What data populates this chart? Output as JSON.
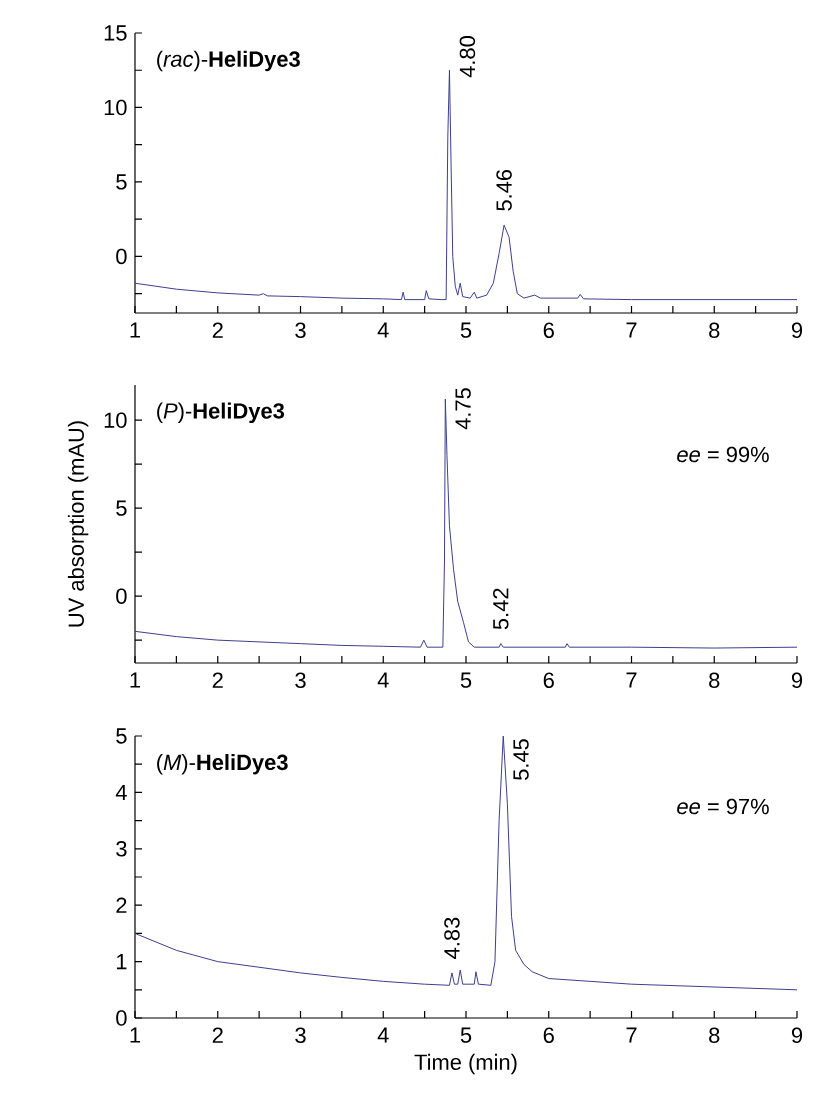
{
  "chart_data": [
    {
      "type": "line",
      "title": "(*rac*)-**HeliDye3**",
      "xlim": [
        1,
        9
      ],
      "ylim": [
        -3.8,
        15
      ],
      "xticks": [
        1,
        {
          "value": 1.5,
          "label": null
        },
        2,
        {
          "value": 2.5,
          "label": null
        },
        3,
        {
          "value": 3.5,
          "label": null
        },
        4,
        {
          "value": 4.5,
          "label": null
        },
        5,
        {
          "value": 5.5,
          "label": null
        },
        6,
        {
          "value": 6.5,
          "label": null
        },
        7,
        {
          "value": 7.5,
          "label": null
        },
        8,
        {
          "value": 8.5,
          "label": null
        },
        9
      ],
      "yticks": [
        {
          "value": -2.5,
          "label": null
        },
        0,
        {
          "value": 2.5,
          "label": null
        },
        5,
        {
          "value": 7.5,
          "label": null
        },
        10,
        {
          "value": 12.5,
          "label": null
        },
        15
      ],
      "annotations": [
        {
          "text": "4.80",
          "x": 4.8,
          "y": 12.5
        },
        {
          "text": "5.46",
          "x": 5.46,
          "y": 2.1
        }
      ],
      "series": [
        {
          "color": "#3b3f8c",
          "x": [
            1,
            1.5,
            2,
            2.5,
            2.55,
            2.6,
            3,
            3.5,
            4,
            4.22,
            4.24,
            4.26,
            4.5,
            4.52,
            4.55,
            4.7,
            4.76,
            4.78,
            4.8,
            4.82,
            4.84,
            4.87,
            4.9,
            4.93,
            4.96,
            5.05,
            5.1,
            5.13,
            5.25,
            5.33,
            5.4,
            5.46,
            5.52,
            5.57,
            5.62,
            5.7,
            5.83,
            5.9,
            6.35,
            6.38,
            6.42,
            7,
            8,
            9
          ],
          "values": [
            -1.8,
            -2.2,
            -2.45,
            -2.6,
            -2.5,
            -2.65,
            -2.7,
            -2.8,
            -2.85,
            -2.9,
            -2.4,
            -2.9,
            -2.9,
            -2.3,
            -2.85,
            -2.9,
            -2.9,
            8,
            12.5,
            6,
            0,
            -2.0,
            -2.6,
            -1.8,
            -2.7,
            -2.8,
            -2.4,
            -2.8,
            -2.6,
            -1.8,
            0.2,
            2.1,
            1.3,
            -1.0,
            -2.5,
            -2.8,
            -2.6,
            -2.8,
            -2.8,
            -2.55,
            -2.85,
            -2.9,
            -2.9,
            -2.9
          ]
        }
      ]
    },
    {
      "type": "line",
      "title": "(*P*)-**HeliDye3**",
      "ylabel": "UV absorption (mAU)",
      "xlim": [
        1,
        9
      ],
      "ylim": [
        -3.8,
        12
      ],
      "xticks": [
        1,
        {
          "value": 1.5,
          "label": null
        },
        2,
        {
          "value": 2.5,
          "label": null
        },
        3,
        {
          "value": 3.5,
          "label": null
        },
        4,
        {
          "value": 4.5,
          "label": null
        },
        5,
        {
          "value": 5.5,
          "label": null
        },
        6,
        {
          "value": 6.5,
          "label": null
        },
        7,
        {
          "value": 7.5,
          "label": null
        },
        8,
        {
          "value": 8.5,
          "label": null
        },
        9
      ],
      "yticks": [
        {
          "value": -2.5,
          "label": null
        },
        0,
        {
          "value": 2.5,
          "label": null
        },
        5,
        {
          "value": 7.5,
          "label": null
        },
        10
      ],
      "annotations": [
        {
          "text": "4.75",
          "x": 4.75,
          "y": 11.2
        },
        {
          "text": "5.42",
          "x": 5.42,
          "y": -2.7
        },
        "*ee* = 99%"
      ],
      "series": [
        {
          "color": "#3b3f8c",
          "x": [
            1,
            1.5,
            2,
            2.5,
            3,
            3.5,
            4,
            4.45,
            4.49,
            4.53,
            4.72,
            4.74,
            4.75,
            4.77,
            4.8,
            4.85,
            4.9,
            4.97,
            5.03,
            5.1,
            5.4,
            5.42,
            5.45,
            6.2,
            6.22,
            6.25,
            7,
            8,
            9
          ],
          "values": [
            -2.0,
            -2.3,
            -2.5,
            -2.6,
            -2.7,
            -2.8,
            -2.85,
            -2.9,
            -2.5,
            -2.9,
            -2.9,
            2,
            11.2,
            8,
            4,
            1.5,
            -0.3,
            -1.5,
            -2.6,
            -2.9,
            -2.9,
            -2.7,
            -2.9,
            -2.9,
            -2.7,
            -2.9,
            -2.9,
            -2.95,
            -2.9
          ]
        }
      ]
    },
    {
      "type": "line",
      "title": "(*M*)-**HeliDye3**",
      "xlabel": "Time (min)",
      "xlim": [
        1,
        9
      ],
      "ylim": [
        0,
        5
      ],
      "xticks": [
        1,
        {
          "value": 1.5,
          "label": null
        },
        2,
        {
          "value": 2.5,
          "label": null
        },
        3,
        {
          "value": 3.5,
          "label": null
        },
        4,
        {
          "value": 4.5,
          "label": null
        },
        5,
        {
          "value": 5.5,
          "label": null
        },
        6,
        {
          "value": 6.5,
          "label": null
        },
        7,
        {
          "value": 7.5,
          "label": null
        },
        8,
        {
          "value": 8.5,
          "label": null
        },
        9
      ],
      "yticks": [
        0,
        {
          "value": 0.5,
          "label": null
        },
        1,
        {
          "value": 1.5,
          "label": null
        },
        2,
        {
          "value": 2.5,
          "label": null
        },
        3,
        {
          "value": 3.5,
          "label": null
        },
        4,
        {
          "value": 4.5,
          "label": null
        },
        5
      ],
      "annotations": [
        {
          "text": "4.83",
          "x": 4.83,
          "y": 0.8
        },
        {
          "text": "5.45",
          "x": 5.45,
          "y": 5.0
        },
        "*ee* = 97%"
      ],
      "series": [
        {
          "color": "#3b3f8c",
          "x": [
            1,
            1.5,
            2,
            2.5,
            3,
            3.5,
            4,
            4.5,
            4.8,
            4.83,
            4.86,
            4.9,
            4.93,
            4.96,
            5.1,
            5.12,
            5.15,
            5.3,
            5.35,
            5.4,
            5.45,
            5.5,
            5.55,
            5.6,
            5.7,
            5.8,
            6,
            6.5,
            7,
            8,
            9
          ],
          "values": [
            1.5,
            1.2,
            1.0,
            0.9,
            0.8,
            0.72,
            0.65,
            0.6,
            0.58,
            0.8,
            0.6,
            0.6,
            0.85,
            0.6,
            0.6,
            0.82,
            0.6,
            0.58,
            1.0,
            3.5,
            5.0,
            3.8,
            1.8,
            1.2,
            0.95,
            0.82,
            0.7,
            0.65,
            0.6,
            0.55,
            0.5
          ]
        }
      ]
    }
  ]
}
